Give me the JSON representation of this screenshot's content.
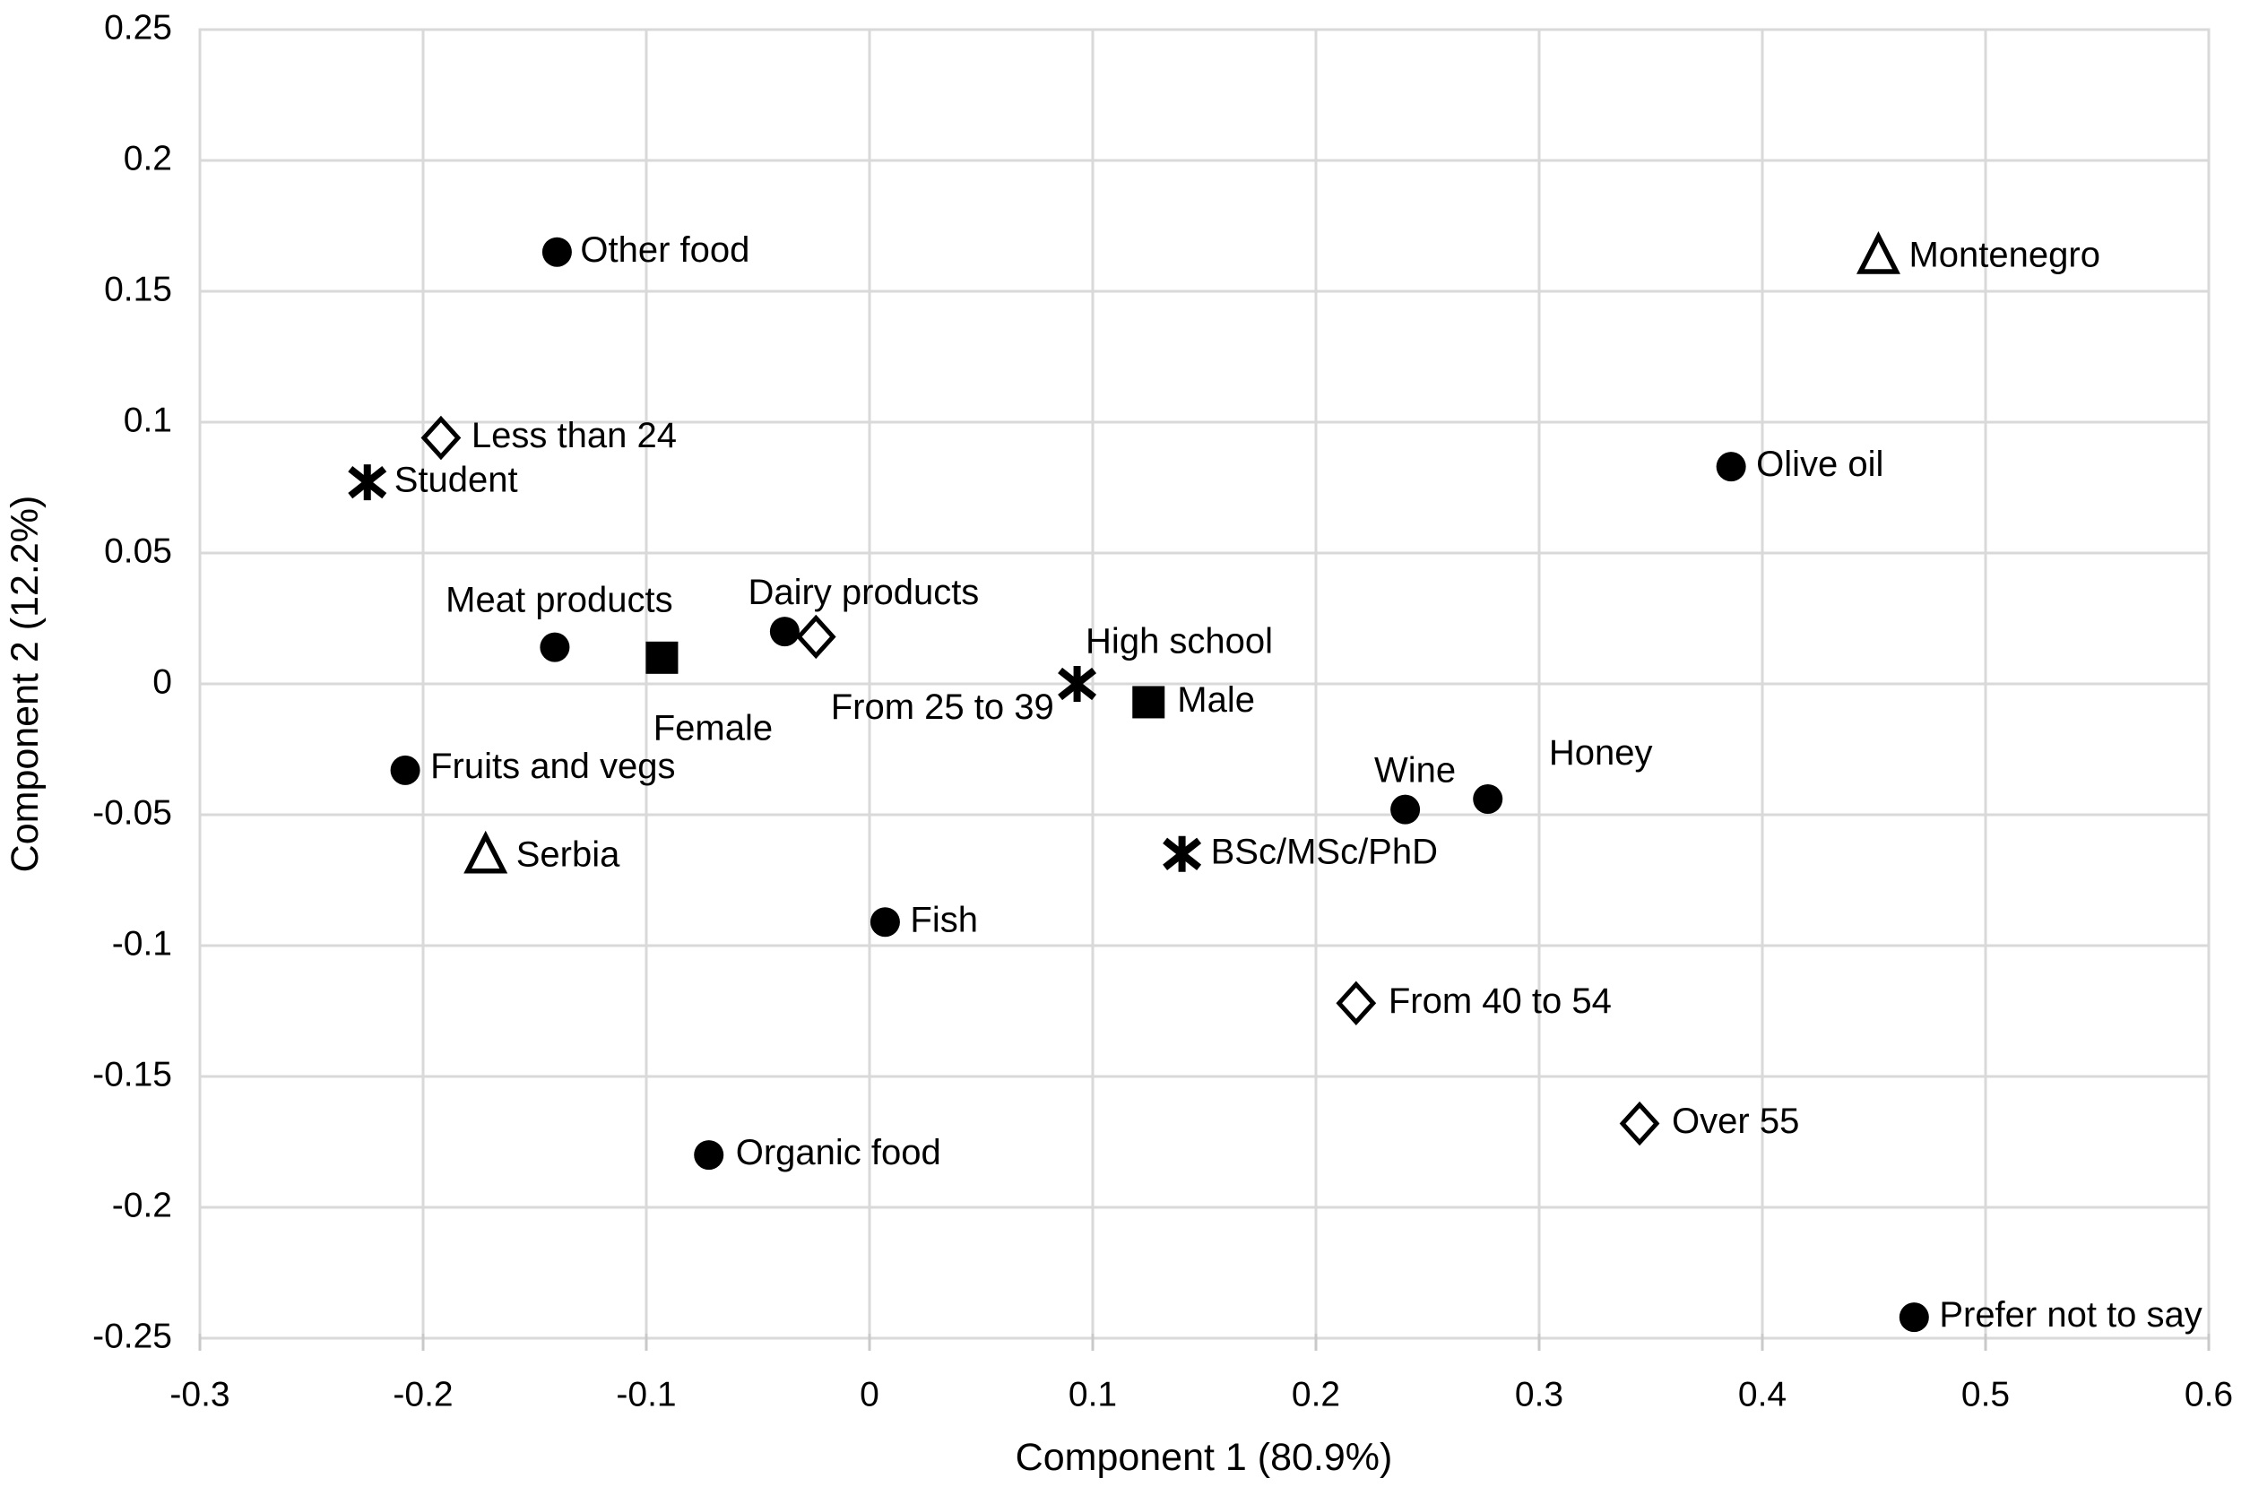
{
  "chart_data": {
    "type": "scatter",
    "title": "",
    "xlabel": "Component 1 (80.9%)",
    "ylabel": "Component 2 (12.2%)",
    "xlim": [
      -0.3,
      0.6
    ],
    "ylim": [
      -0.25,
      0.25
    ],
    "grid": true,
    "legend": "none",
    "xtick_labels": [
      "-0.3",
      "-0.2",
      "-0.1",
      "0",
      "0.1",
      "0.2",
      "0.3",
      "0.4",
      "0.5",
      "0.6"
    ],
    "ytick_labels": [
      "0.25",
      "0.2",
      "0.15",
      "0.1",
      "0.05",
      "0",
      "-0.05",
      "-0.1",
      "-0.15",
      "-0.2",
      "-0.25"
    ],
    "colors": {
      "marker": "#000000",
      "grid": "#d9d9d9",
      "tick": "#c9c9c9",
      "text": "#000000"
    },
    "series": [
      {
        "marker": "filled-circle",
        "points": [
          {
            "label": "Other food",
            "x": -0.14,
            "y": 0.165,
            "label_anchor": "start",
            "label_dx": 26,
            "label_dy": 0
          },
          {
            "label": "Olive oil",
            "x": 0.386,
            "y": 0.083,
            "label_anchor": "start",
            "label_dx": 28,
            "label_dy": 0
          },
          {
            "label": "Meat products",
            "x": -0.141,
            "y": 0.014,
            "label_anchor": "middle",
            "label_dx": 5,
            "label_dy": -50
          },
          {
            "label": "Dairy products",
            "x": -0.038,
            "y": 0.02,
            "label_anchor": "middle",
            "label_dx": 88,
            "label_dy": -41
          },
          {
            "label": "Fruits and vegs",
            "x": -0.208,
            "y": -0.033,
            "label_anchor": "start",
            "label_dx": 28,
            "label_dy": -2
          },
          {
            "label": "Wine",
            "x": 0.24,
            "y": -0.048,
            "label_anchor": "middle",
            "label_dx": 11,
            "label_dy": -41
          },
          {
            "label": "Honey",
            "x": 0.277,
            "y": -0.044,
            "label_anchor": "middle",
            "label_dx": 126,
            "label_dy": -49
          },
          {
            "label": "Fish",
            "x": 0.007,
            "y": -0.091,
            "label_anchor": "start",
            "label_dx": 28,
            "label_dy": 0
          },
          {
            "label": "Organic food",
            "x": -0.072,
            "y": -0.18,
            "label_anchor": "start",
            "label_dx": 30,
            "label_dy": 0
          },
          {
            "label": "Prefer not to say",
            "x": 0.468,
            "y": -0.242,
            "label_anchor": "start",
            "label_dx": 28,
            "label_dy": 0
          }
        ]
      },
      {
        "marker": "open-diamond",
        "points": [
          {
            "label": "Less than 24",
            "x": -0.192,
            "y": 0.094,
            "label_anchor": "start",
            "label_dx": 34,
            "label_dy": 0
          },
          {
            "label": "From 25 to 39",
            "x": -0.024,
            "y": 0.018,
            "label_anchor": "middle",
            "label_dx": 141,
            "label_dy": 81
          },
          {
            "label": "From 40 to 54",
            "x": 0.218,
            "y": -0.122,
            "label_anchor": "start",
            "label_dx": 36,
            "label_dy": 0
          },
          {
            "label": "Over 55",
            "x": 0.345,
            "y": -0.168,
            "label_anchor": "start",
            "label_dx": 36,
            "label_dy": 0
          }
        ]
      },
      {
        "marker": "asterisk",
        "points": [
          {
            "label": "Student",
            "x": -0.225,
            "y": 0.077,
            "label_anchor": "start",
            "label_dx": 30,
            "label_dy": 0
          },
          {
            "label": "High school",
            "x": 0.093,
            "y": 0.0,
            "label_anchor": "middle",
            "label_dx": 114,
            "label_dy": -45
          },
          {
            "label": "BSc/MSc/PhD",
            "x": 0.14,
            "y": -0.065,
            "label_anchor": "start",
            "label_dx": 32,
            "label_dy": 0
          }
        ]
      },
      {
        "marker": "open-triangle",
        "points": [
          {
            "label": "Montenegro",
            "x": 0.452,
            "y": 0.163,
            "label_anchor": "start",
            "label_dx": 34,
            "label_dy": 0
          },
          {
            "label": "Serbia",
            "x": -0.172,
            "y": -0.066,
            "label_anchor": "start",
            "label_dx": 34,
            "label_dy": 0
          }
        ]
      },
      {
        "marker": "filled-square",
        "points": [
          {
            "label": "Female",
            "x": -0.093,
            "y": 0.01,
            "label_anchor": "middle",
            "label_dx": 57,
            "label_dy": 81
          },
          {
            "label": "Male",
            "x": 0.125,
            "y": -0.007,
            "label_anchor": "start",
            "label_dx": 32,
            "label_dy": 0
          }
        ]
      }
    ]
  }
}
